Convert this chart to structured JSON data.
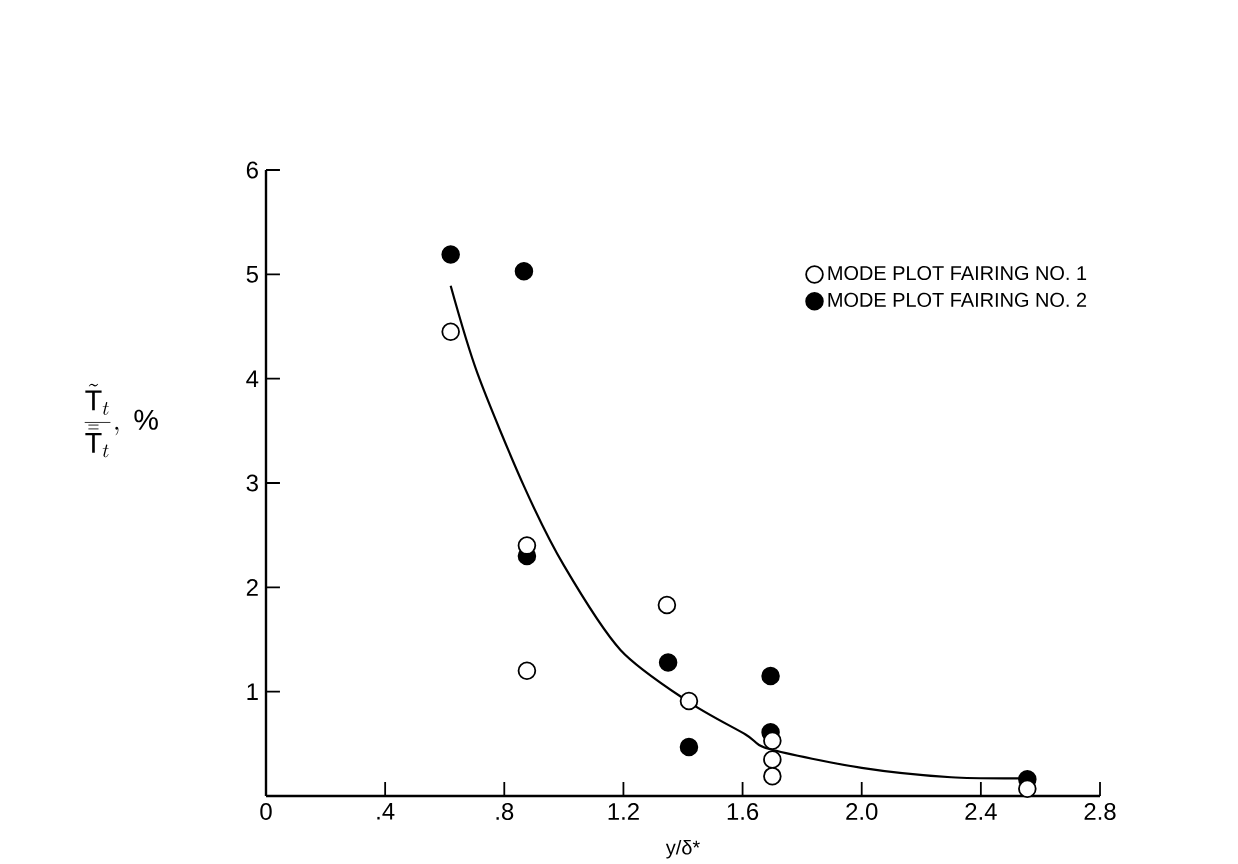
{
  "chart_data": {
    "type": "scatter",
    "xlabel": "y/δ*",
    "ylabel": "\\frac{\\tilde{\\mathrm{T}}_t}{\\bar{\\bar{\\mathrm{T}}}_t},\\ \\%",
    "xlim": [
      0,
      2.8
    ],
    "ylim": [
      0,
      6
    ],
    "xticks": [
      0,
      {
        "value": 0.4,
        "label": ".4"
      },
      {
        "value": 0.8,
        "label": ".8"
      },
      1.2,
      1.6,
      {
        "value": 2.0,
        "label": "2.0"
      },
      2.4,
      2.8
    ],
    "yticks": [
      {
        "value": 0,
        "label": null
      },
      1,
      2,
      3,
      4,
      5,
      6
    ],
    "legend": "top right",
    "grid": false,
    "series": [
      {
        "name": "MODE PLOT FAIRING NO. 1",
        "marker": "circle",
        "color": "#ffffff",
        "x": [
          0.62,
          0.876,
          0.876,
          1.346,
          1.42,
          1.7,
          1.7,
          1.7,
          2.556
        ],
        "values": [
          4.45,
          2.4,
          1.2,
          1.83,
          0.91,
          0.53,
          0.35,
          0.19,
          0.07
        ]
      },
      {
        "name": "MODE PLOT FAIRING NO. 2",
        "marker": "circle",
        "color": "#000000",
        "x": [
          0.62,
          0.866,
          0.876,
          1.35,
          1.42,
          1.694,
          1.694,
          2.556
        ],
        "values": [
          5.19,
          5.03,
          2.3,
          1.28,
          0.47,
          1.15,
          0.61,
          0.16
        ]
      },
      {
        "type": "line",
        "marker": "none",
        "color": "#000000",
        "x": [
          0.62,
          0.71,
          0.866,
          1.0,
          1.19,
          1.42,
          1.61,
          1.69,
          2.0,
          2.3,
          2.55
        ],
        "values": [
          4.89,
          4.05,
          2.97,
          2.21,
          1.4,
          0.9,
          0.59,
          0.45,
          0.27,
          0.18,
          0.17
        ]
      }
    ]
  }
}
